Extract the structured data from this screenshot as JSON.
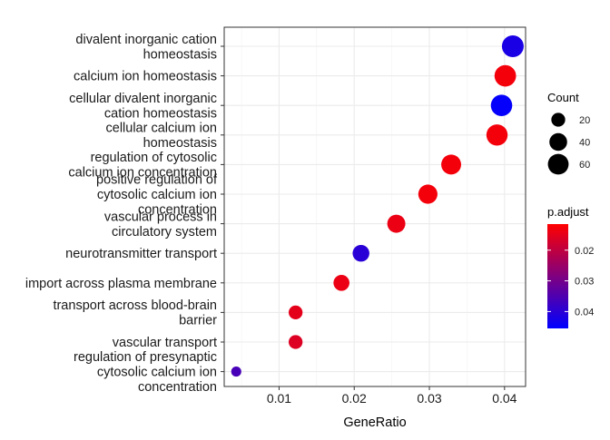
{
  "chart_data": {
    "type": "scatter",
    "xlabel": "GeneRatio",
    "xlim": [
      0.0027,
      0.0428
    ],
    "xticks": [
      0.01,
      0.02,
      0.03,
      0.04
    ],
    "xtick_labels": [
      "0.01",
      "0.02",
      "0.03",
      "0.04"
    ],
    "grid": true,
    "legend_position": "right",
    "categories": [
      [
        "divalent inorganic cation",
        "homeostasis"
      ],
      [
        "calcium ion homeostasis"
      ],
      [
        "cellular divalent inorganic",
        "cation homeostasis"
      ],
      [
        "cellular calcium ion",
        "homeostasis"
      ],
      [
        "regulation of cytosolic",
        "calcium ion concentration"
      ],
      [
        "positive regulation of",
        "cytosolic calcium ion",
        "concentration"
      ],
      [
        "vascular process in",
        "circulatory system"
      ],
      [
        "neurotransmitter transport"
      ],
      [
        "import across plasma membrane"
      ],
      [
        "transport across blood-brain",
        "barrier"
      ],
      [
        "vascular transport"
      ],
      [
        "regulation of presynaptic",
        "cytosolic calcium ion",
        "concentration"
      ]
    ],
    "points": [
      {
        "gene_ratio": 0.0411,
        "count": 68,
        "p_adjust": 0.042
      },
      {
        "gene_ratio": 0.0401,
        "count": 66,
        "p_adjust": 0.013
      },
      {
        "gene_ratio": 0.0396,
        "count": 65,
        "p_adjust": 0.045
      },
      {
        "gene_ratio": 0.039,
        "count": 64,
        "p_adjust": 0.013
      },
      {
        "gene_ratio": 0.0329,
        "count": 54,
        "p_adjust": 0.013
      },
      {
        "gene_ratio": 0.0298,
        "count": 49,
        "p_adjust": 0.013
      },
      {
        "gene_ratio": 0.0256,
        "count": 42,
        "p_adjust": 0.014
      },
      {
        "gene_ratio": 0.0209,
        "count": 34,
        "p_adjust": 0.04
      },
      {
        "gene_ratio": 0.0183,
        "count": 30,
        "p_adjust": 0.014
      },
      {
        "gene_ratio": 0.0122,
        "count": 20,
        "p_adjust": 0.015
      },
      {
        "gene_ratio": 0.0122,
        "count": 20,
        "p_adjust": 0.016
      },
      {
        "gene_ratio": 0.0043,
        "count": 7,
        "p_adjust": 0.036
      }
    ],
    "size_legend": {
      "title": "Count",
      "values": [
        20,
        40,
        60
      ],
      "labels": [
        "20",
        "40",
        "60"
      ]
    },
    "color_legend": {
      "title": "p.adjust",
      "min": 0.0115,
      "max": 0.0455,
      "ticks": [
        0.02,
        0.03,
        0.04
      ],
      "labels": [
        "0.02",
        "0.03",
        "0.04"
      ],
      "low_color": "#FF0000",
      "high_color": "#0000FF"
    }
  }
}
